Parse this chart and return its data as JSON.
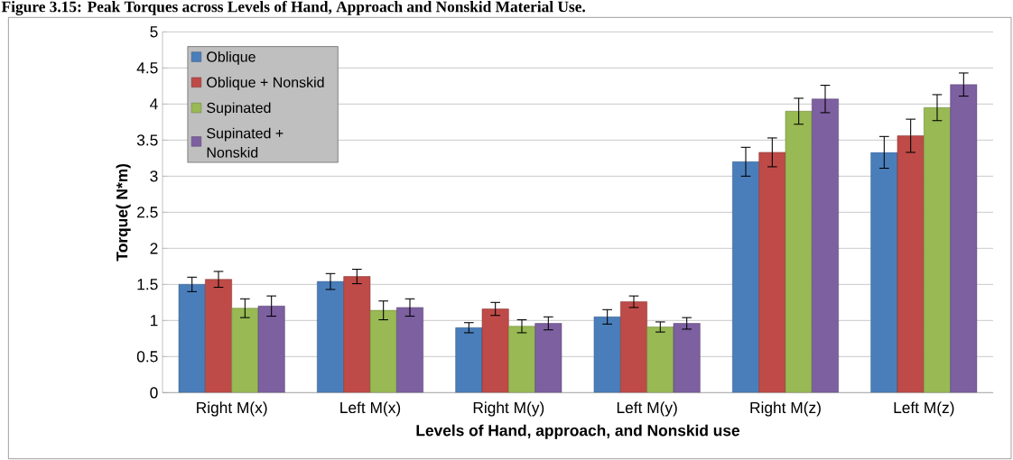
{
  "chart_data": {
    "type": "bar",
    "title": "Figure 3.15: Peak Torques across Levels of Hand, Approach and Nonskid Material Use.",
    "xlabel": "Levels of Hand, approach, and Nonskid use",
    "ylabel": "Torque( N*m)",
    "categories": [
      "Right M(x)",
      "Left M(x)",
      "Right M(y)",
      "Left M(y)",
      "Right M(z)",
      "Left M(z)"
    ],
    "series": [
      {
        "name": "Oblique",
        "color": "#4a7ebb",
        "values": [
          1.5,
          1.54,
          0.9,
          1.05,
          3.2,
          3.33
        ],
        "errors": [
          0.1,
          0.11,
          0.07,
          0.1,
          0.2,
          0.22
        ]
      },
      {
        "name": "Oblique + Nonskid",
        "color": "#be4b48",
        "values": [
          1.57,
          1.61,
          1.16,
          1.26,
          3.33,
          3.56
        ],
        "errors": [
          0.11,
          0.1,
          0.09,
          0.08,
          0.2,
          0.23
        ]
      },
      {
        "name": "Supinated",
        "color": "#98b954",
        "values": [
          1.17,
          1.14,
          0.92,
          0.91,
          3.9,
          3.95
        ],
        "errors": [
          0.13,
          0.13,
          0.09,
          0.07,
          0.18,
          0.18
        ]
      },
      {
        "name": "Supinated + Nonskid",
        "color": "#7d60a0",
        "values": [
          1.2,
          1.18,
          0.96,
          0.96,
          4.07,
          4.27
        ],
        "errors": [
          0.14,
          0.12,
          0.09,
          0.08,
          0.19,
          0.16
        ]
      }
    ],
    "ylim": [
      0,
      5
    ],
    "yticks": [
      0,
      0.5,
      1,
      1.5,
      2,
      2.5,
      3,
      3.5,
      4,
      4.5,
      5
    ],
    "grid": "y",
    "legend": "top left"
  }
}
